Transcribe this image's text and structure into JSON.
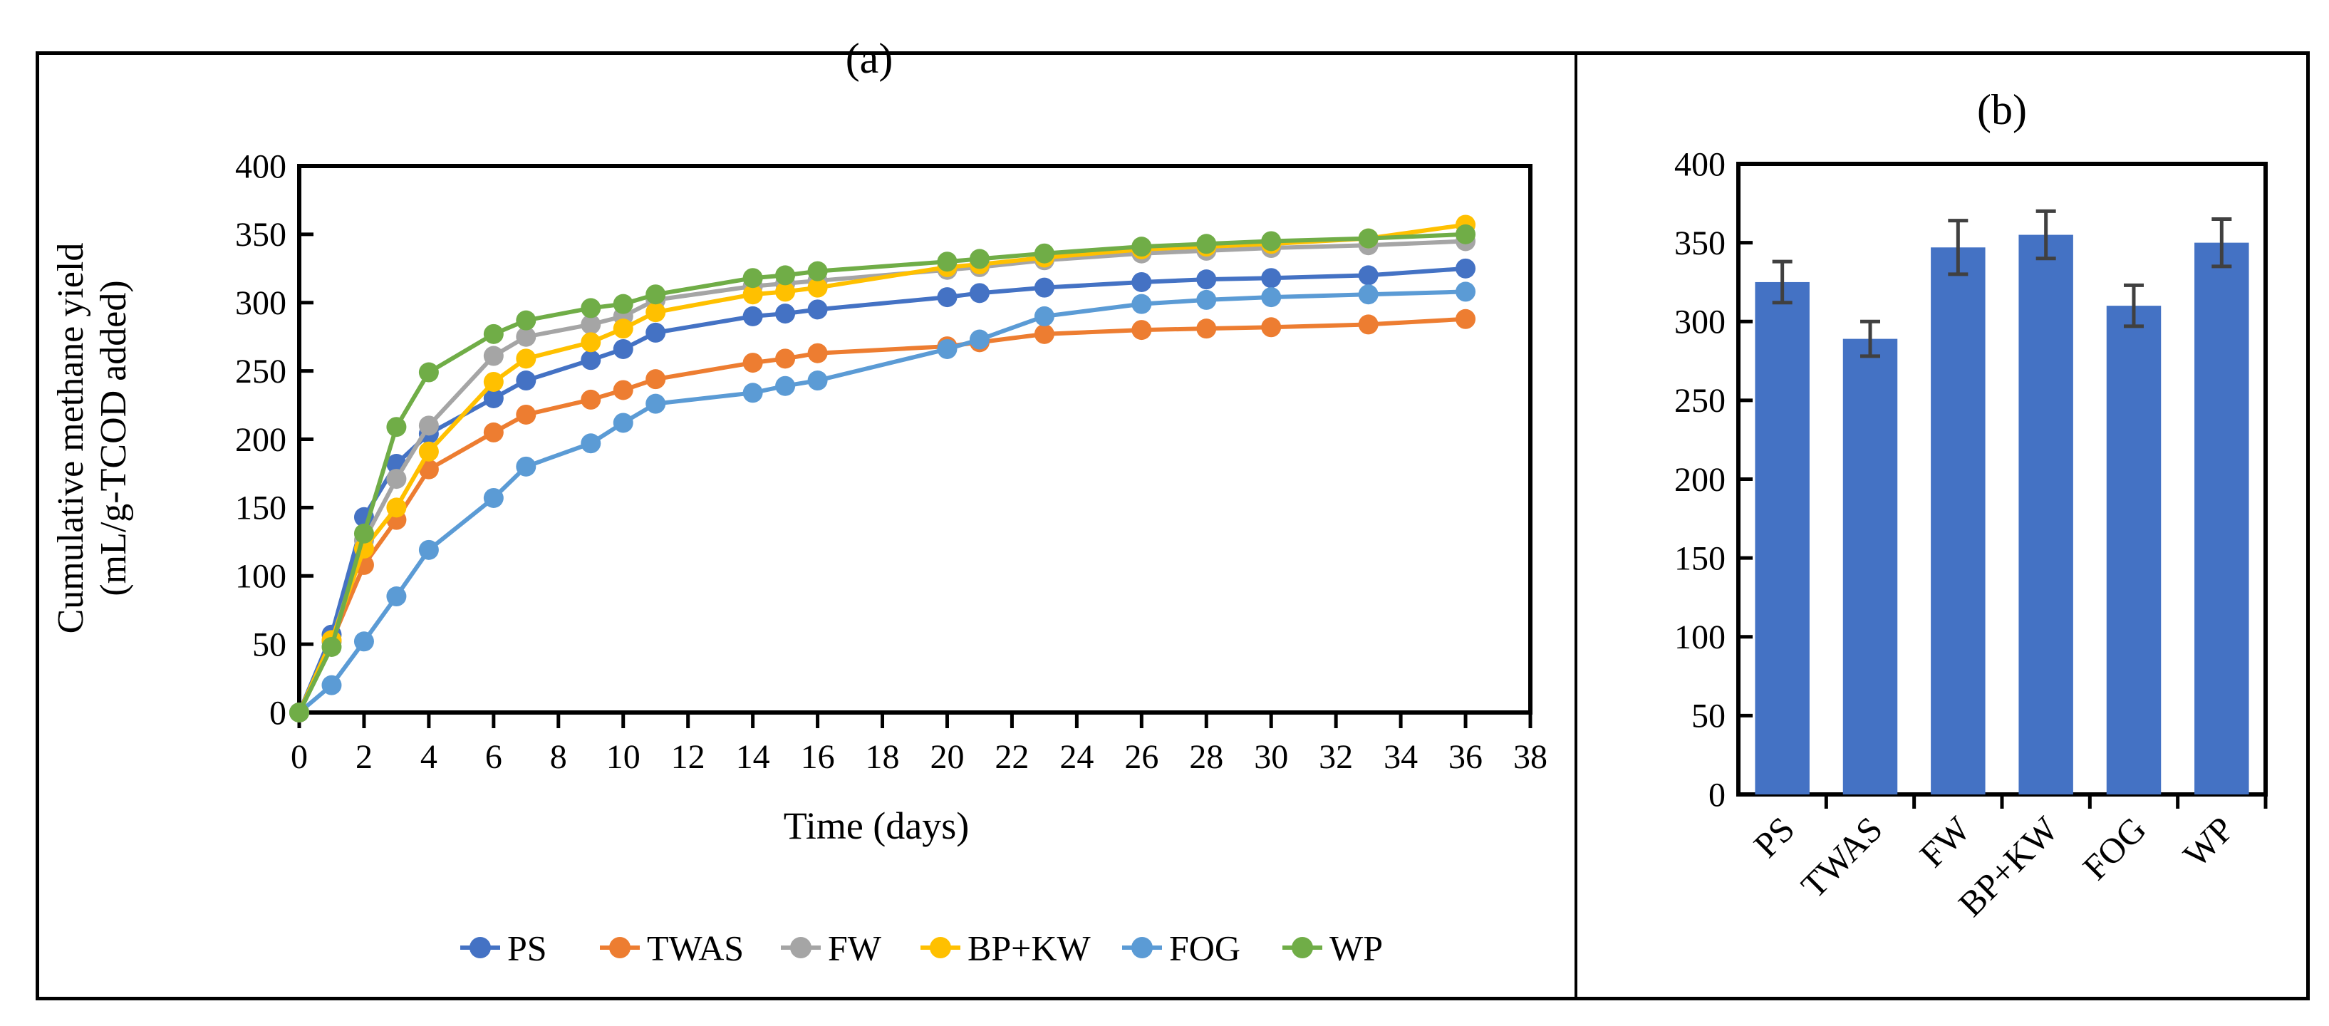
{
  "figure": {
    "panel_a_title": "(a)",
    "panel_b_title": "(b)",
    "y_axis_title_line1": "Cumulative methane yield",
    "y_axis_title_line2": "(mL/g-TCOD added)",
    "x_axis_title": "Time (days)"
  },
  "colors": {
    "PS": "#4472C4",
    "TWAS": "#ED7D31",
    "FW": "#A5A5A5",
    "BP+KW": "#FFC000",
    "FOG": "#5B9BD5",
    "WP": "#70AD47",
    "bar": "#4472C4",
    "error_bar": "#404040",
    "axis": "#000000"
  },
  "chart_data": [
    {
      "type": "line",
      "panel": "a",
      "title": "(a)",
      "xlabel": "Time (days)",
      "ylabel": "Cumulative methane yield (mL/g-TCOD added)",
      "xlim": [
        0,
        38
      ],
      "ylim": [
        0,
        400
      ],
      "x_tick_step": 2,
      "y_tick_step": 50,
      "grid": false,
      "legend_position": "bottom",
      "x": [
        0,
        1,
        2,
        3,
        4,
        6,
        7,
        9,
        10,
        11,
        14,
        15,
        16,
        20,
        21,
        23,
        26,
        28,
        30,
        33,
        36
      ],
      "series": [
        {
          "name": "PS",
          "color": "#4472C4",
          "values": [
            0,
            57,
            143,
            182,
            204,
            230,
            243,
            258,
            266,
            278,
            290,
            292,
            295,
            304,
            307,
            311,
            315,
            317,
            318,
            320,
            325
          ]
        },
        {
          "name": "TWAS",
          "color": "#ED7D31",
          "values": [
            0,
            52,
            108,
            141,
            178,
            205,
            218,
            229,
            236,
            244,
            256,
            259,
            263,
            268,
            271,
            277,
            280,
            281,
            282,
            284,
            288
          ]
        },
        {
          "name": "FW",
          "color": "#A5A5A5",
          "values": [
            0,
            52,
            126,
            171,
            210,
            261,
            275,
            284,
            290,
            302,
            312,
            314,
            316,
            324,
            326,
            331,
            336,
            338,
            340,
            342,
            345
          ]
        },
        {
          "name": "BP+KW",
          "color": "#FFC000",
          "values": [
            0,
            53,
            120,
            150,
            191,
            242,
            259,
            271,
            281,
            293,
            306,
            308,
            311,
            326,
            328,
            333,
            339,
            341,
            343,
            347,
            357
          ]
        },
        {
          "name": "FOG",
          "color": "#5B9BD5",
          "values": [
            0,
            20,
            52,
            85,
            119,
            157,
            180,
            197,
            212,
            226,
            234,
            239,
            243,
            266,
            273,
            290,
            299,
            302,
            304,
            306,
            308
          ]
        },
        {
          "name": "WP",
          "color": "#70AD47",
          "values": [
            0,
            48,
            131,
            209,
            249,
            277,
            287,
            296,
            299,
            306,
            318,
            320,
            323,
            330,
            332,
            336,
            341,
            343,
            345,
            347,
            350
          ]
        }
      ]
    },
    {
      "type": "bar",
      "panel": "b",
      "title": "(b)",
      "xlabel": "",
      "ylabel": "",
      "ylim": [
        0,
        400
      ],
      "y_tick_step": 50,
      "grid": false,
      "categories": [
        "PS",
        "TWAS",
        "FW",
        "BP+KW",
        "FOG",
        "WP"
      ],
      "values": [
        325,
        289,
        347,
        355,
        310,
        350
      ],
      "errors": [
        13,
        11,
        17,
        15,
        13,
        15
      ],
      "bar_color": "#4472C4",
      "error_color": "#404040"
    }
  ]
}
